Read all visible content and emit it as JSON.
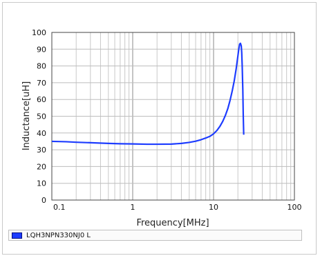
{
  "chart_data": {
    "type": "line",
    "xlabel": "Frequency[MHz]",
    "ylabel": "Inductance[uH]",
    "x_scale": "log",
    "xlim": [
      0.1,
      100
    ],
    "ylim": [
      0,
      100
    ],
    "x_ticks": [
      "0.1",
      "1",
      "10",
      "100"
    ],
    "y_ticks": [
      "0",
      "10",
      "20",
      "30",
      "40",
      "50",
      "60",
      "70",
      "80",
      "90",
      "100"
    ],
    "grid": true,
    "legend": "bottom",
    "series": [
      {
        "name": "LQH3NPN330NJ0 L",
        "color": "#1d3cff",
        "x": [
          0.1,
          0.15,
          0.2,
          0.3,
          0.5,
          0.7,
          1,
          1.5,
          2,
          3,
          4,
          5,
          6,
          7,
          8,
          9,
          10,
          11,
          12,
          13,
          14,
          15,
          16,
          17,
          18,
          19,
          20,
          20.5,
          21,
          21.5,
          22,
          22.3,
          22.6,
          23,
          23.3,
          23.6
        ],
        "values": [
          35,
          34.8,
          34.5,
          34.2,
          33.8,
          33.6,
          33.5,
          33.3,
          33.3,
          33.4,
          33.8,
          34.4,
          35.1,
          36,
          37,
          38,
          39.5,
          41.5,
          44,
          47,
          50.5,
          54.5,
          59.5,
          65,
          71,
          78,
          86,
          90,
          93,
          93.5,
          92,
          88,
          80,
          66,
          50,
          39
        ]
      }
    ]
  }
}
